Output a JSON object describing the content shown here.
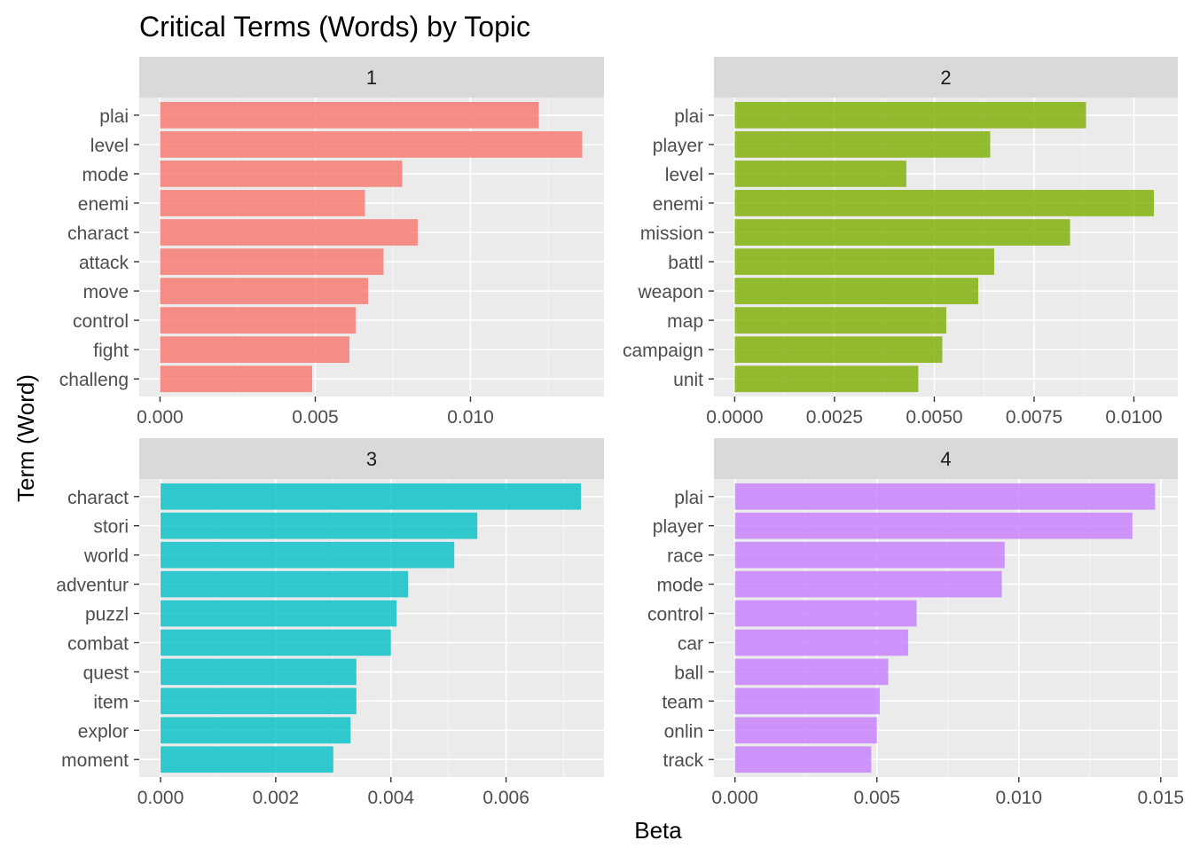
{
  "title": "Critical Terms (Words) by Topic",
  "xlabel": "Beta",
  "ylabel": "Term (Word)",
  "chart_data": {
    "type": "bar",
    "orientation": "horizontal",
    "facet": "topic",
    "grid": true,
    "legend": "none",
    "panels": [
      {
        "topic": "1",
        "color": "#F8766D",
        "xlim": [
          -0.00067,
          0.0143
        ],
        "xticks": [
          "0.000",
          "0.005",
          "0.010"
        ],
        "categories": [
          "plai",
          "level",
          "mode",
          "enemi",
          "charact",
          "attack",
          "move",
          "control",
          "fight",
          "challeng"
        ],
        "values": [
          0.0122,
          0.0136,
          0.0078,
          0.0066,
          0.0083,
          0.0072,
          0.0067,
          0.0063,
          0.0061,
          0.0049
        ]
      },
      {
        "topic": "2",
        "color": "#7CAE00",
        "xlim": [
          -0.00052,
          0.0111
        ],
        "xticks": [
          "0.0000",
          "0.0025",
          "0.0050",
          "0.0075",
          "0.0100"
        ],
        "categories": [
          "plai",
          "player",
          "level",
          "enemi",
          "mission",
          "battl",
          "weapon",
          "map",
          "campaign",
          "unit"
        ],
        "values": [
          0.0088,
          0.0064,
          0.0043,
          0.0105,
          0.0084,
          0.0065,
          0.0061,
          0.0053,
          0.0052,
          0.0046
        ]
      },
      {
        "topic": "3",
        "color": "#00BFC4",
        "xlim": [
          -0.00037,
          0.0077
        ],
        "xticks": [
          "0.000",
          "0.002",
          "0.004",
          "0.006"
        ],
        "categories": [
          "charact",
          "stori",
          "world",
          "adventur",
          "puzzl",
          "combat",
          "quest",
          "item",
          "explor",
          "moment"
        ],
        "values": [
          0.0073,
          0.0055,
          0.0051,
          0.0043,
          0.0041,
          0.004,
          0.0034,
          0.0034,
          0.0033,
          0.003
        ]
      },
      {
        "topic": "4",
        "color": "#C77CFF",
        "xlim": [
          -0.00074,
          0.0156
        ],
        "xticks": [
          "0.000",
          "0.005",
          "0.010",
          "0.015"
        ],
        "categories": [
          "plai",
          "player",
          "race",
          "mode",
          "control",
          "car",
          "ball",
          "team",
          "onlin",
          "track"
        ],
        "values": [
          0.0148,
          0.014,
          0.0095,
          0.0094,
          0.0064,
          0.0061,
          0.0054,
          0.0051,
          0.005,
          0.0048
        ]
      }
    ]
  }
}
